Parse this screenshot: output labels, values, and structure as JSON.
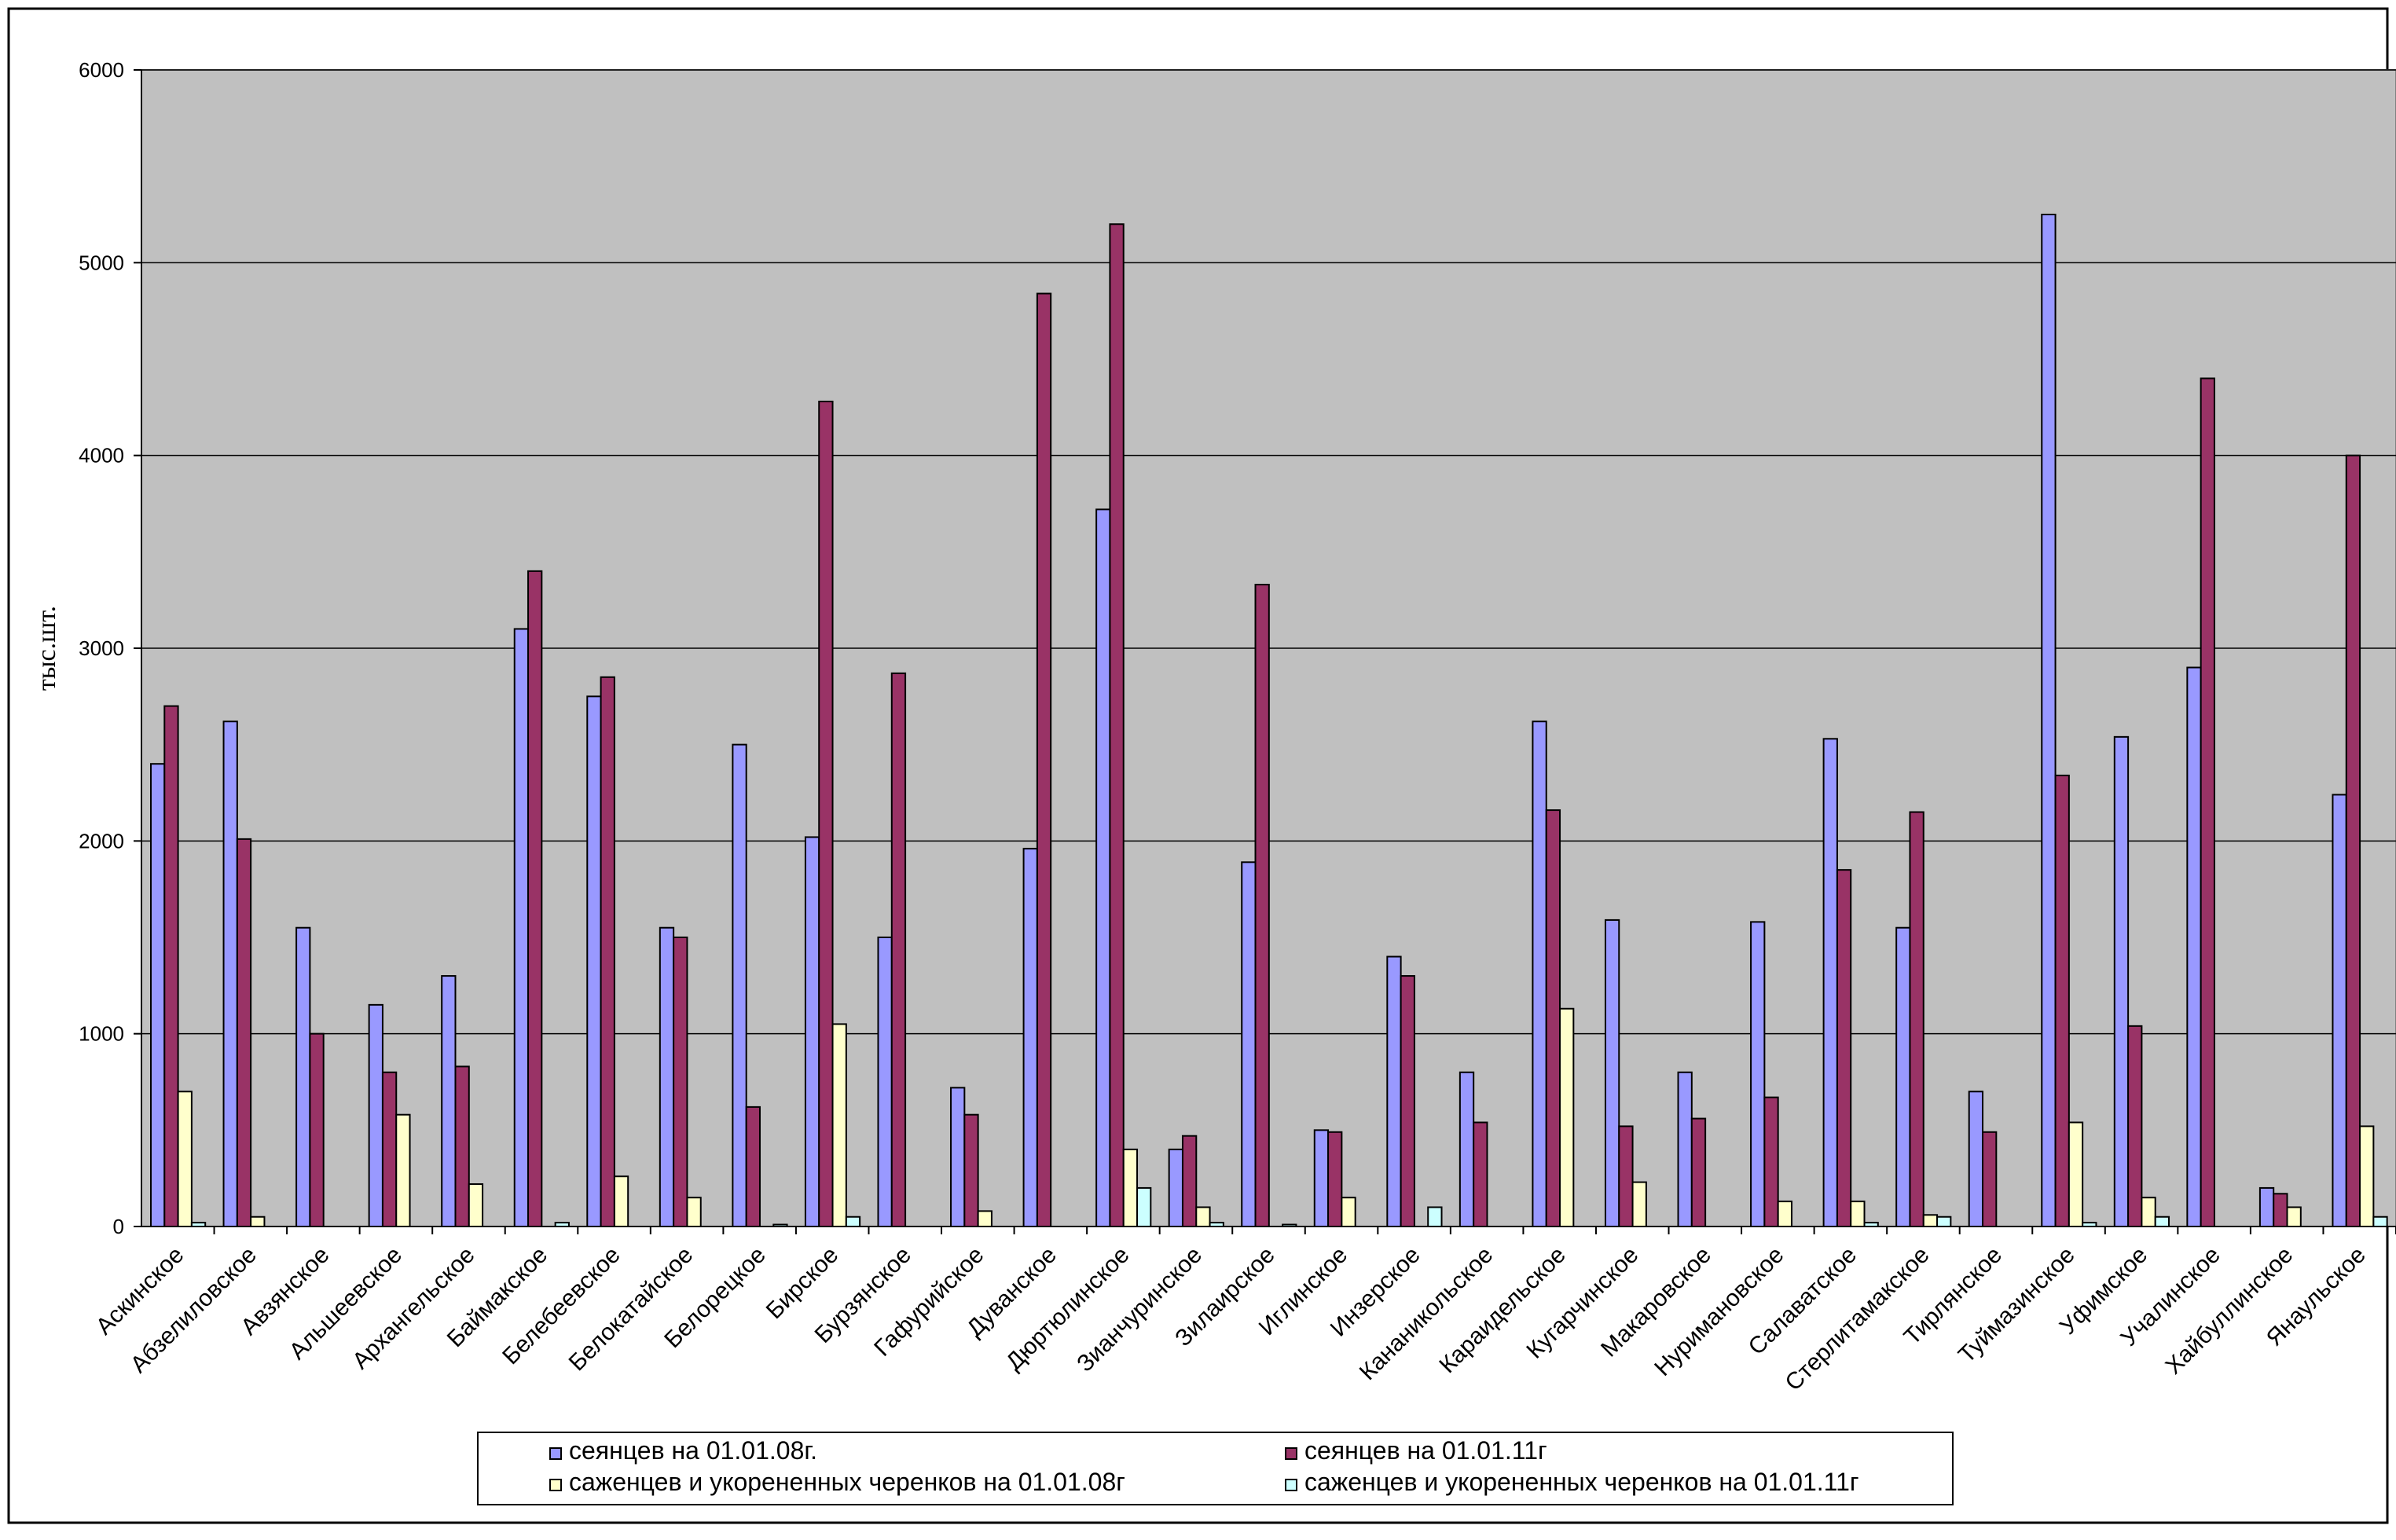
{
  "chart_data": {
    "type": "bar",
    "title": "",
    "xlabel": "",
    "ylabel": "тыс.шт.",
    "ylim": [
      0,
      6000
    ],
    "yticks": [
      0,
      1000,
      2000,
      3000,
      4000,
      5000,
      6000
    ],
    "grid": true,
    "legend_position": "bottom",
    "colors": {
      "plot_background": "#c0c0c0",
      "gridline": "#000000",
      "series": [
        "#9999ff",
        "#993366",
        "#ffffcc",
        "#ccffff"
      ]
    },
    "categories": [
      "Аскинское",
      "Абзелиловское",
      "Авзянское",
      "Альшеевское",
      "Архангельское",
      "Баймакское",
      "Белебеевское",
      "Белокатайское",
      "Белорецкое",
      "Бирское",
      "Бурзянское",
      "Гафурийское",
      "Дуванское",
      "Дюртюлинское",
      "Зианчуринское",
      "Зилаирское",
      "Иглинское",
      "Инзерское",
      "Кананикольское",
      "Караидельское",
      "Кугарчинское",
      "Макаровское",
      "Нуримановское",
      "Салаватское",
      "Стерлитамакское",
      "Тирлянское",
      "Туймазинское",
      "Уфимское",
      "Учалинское",
      "Хайбуллинское",
      "Янаульское"
    ],
    "series": [
      {
        "name": "сеянцев на 01.01.08г.",
        "values": [
          2400,
          2620,
          1550,
          1150,
          1300,
          3100,
          2750,
          1550,
          2500,
          2020,
          1500,
          720,
          1960,
          3720,
          400,
          1890,
          500,
          1400,
          800,
          2620,
          1590,
          800,
          1580,
          2530,
          1550,
          700,
          5250,
          2540,
          2900,
          200,
          2240
        ]
      },
      {
        "name": "сеянцев на 01.01.11г",
        "values": [
          2700,
          2010,
          1000,
          800,
          830,
          3400,
          2850,
          1500,
          620,
          4280,
          2870,
          580,
          4840,
          5200,
          470,
          3330,
          490,
          1300,
          540,
          2160,
          520,
          560,
          670,
          1850,
          2150,
          490,
          2340,
          1040,
          4400,
          170,
          4000
        ]
      },
      {
        "name": "саженцев и укорененных черенков на 01.01.08г",
        "values": [
          700,
          50,
          0,
          580,
          220,
          0,
          260,
          150,
          0,
          1050,
          0,
          80,
          0,
          400,
          100,
          0,
          150,
          0,
          0,
          1130,
          230,
          0,
          130,
          130,
          60,
          0,
          540,
          150,
          0,
          100,
          520
        ]
      },
      {
        "name": "саженцев и укорененных черенков на 01.01.11г",
        "values": [
          20,
          0,
          0,
          0,
          0,
          20,
          0,
          0,
          10,
          50,
          0,
          0,
          0,
          200,
          20,
          10,
          0,
          100,
          0,
          0,
          0,
          0,
          0,
          20,
          50,
          0,
          20,
          50,
          0,
          0,
          50
        ]
      }
    ]
  }
}
